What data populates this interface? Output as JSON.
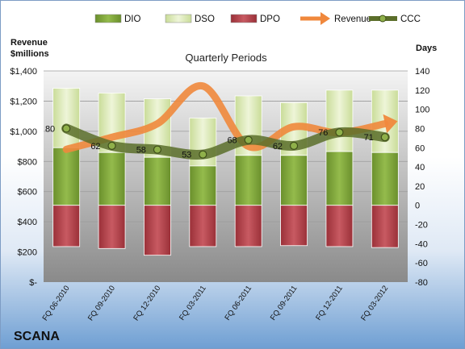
{
  "chart_data": {
    "type": "bar",
    "title": "Quarterly Periods",
    "company": "SCANA",
    "y_left_label": "Revenue\n$millions",
    "y_right_label": "Days",
    "ylim_left": [
      0,
      1400
    ],
    "ylim_right": [
      -80,
      140
    ],
    "left_ticks": [
      "$-",
      "$200",
      "$400",
      "$600",
      "$800",
      "$1,000",
      "$1,200",
      "$1,400"
    ],
    "right_ticks": [
      "-80",
      "-60",
      "-40",
      "-20",
      "0",
      "20",
      "40",
      "60",
      "80",
      "100",
      "120",
      "140"
    ],
    "categories": [
      "FQ 06-2010",
      "FQ 09-2010",
      "FQ 12-2010",
      "FQ 03-2011",
      "FQ 06-2011",
      "FQ 09-2011",
      "FQ 12-2011",
      "FQ 03-2012"
    ],
    "legend": [
      "DIO",
      "DSO",
      "DPO",
      "Revenue",
      "CCC"
    ],
    "legend_position": "top",
    "grid": true,
    "series": [
      {
        "name": "DIO",
        "axis": "right",
        "color": "#7fa33a",
        "values": [
          60,
          55,
          50,
          41,
          52,
          52,
          56,
          55
        ]
      },
      {
        "name": "DSO",
        "axis": "right",
        "color": "#dbe8b8",
        "values": [
          62,
          62,
          61,
          50,
          62,
          55,
          64,
          65
        ]
      },
      {
        "name": "DPO",
        "axis": "right",
        "color": "#b5414b",
        "values": [
          -43,
          -45,
          -52,
          -43,
          -43,
          -42,
          -43,
          -44
        ]
      },
      {
        "name": "Revenue",
        "axis": "left",
        "color": "#f0883c",
        "values": [
          880,
          960,
          1050,
          1300,
          900,
          1030,
          990,
          1050
        ]
      },
      {
        "name": "CCC",
        "axis": "right",
        "color": "#5b6e2a",
        "values": [
          80,
          62,
          58,
          53,
          68,
          62,
          76,
          71
        ],
        "labels": [
          "80",
          "62",
          "58",
          "53",
          "68",
          "62",
          "76",
          "71"
        ]
      }
    ]
  }
}
